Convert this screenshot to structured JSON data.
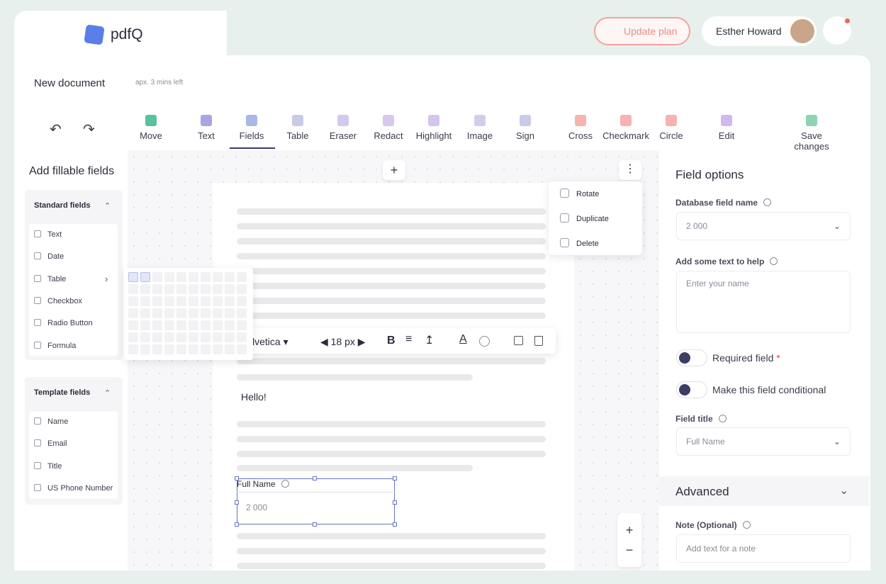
{
  "header": {
    "logo": "pdfQ",
    "update_plan": "Update plan",
    "user_name": "Esther Howard"
  },
  "document": {
    "title": "New document",
    "time_left": "apx. 3 mins left"
  },
  "toolbar": [
    "Move",
    "Text",
    "Fields",
    "Table",
    "Eraser",
    "Redact",
    "Highlight",
    "Image",
    "Sign",
    "Cross",
    "Checkmark",
    "Circle",
    "Edit",
    "Save changes"
  ],
  "left_panel": {
    "title": "Add fillable fields",
    "standard": {
      "title": "Standard fields",
      "items": [
        "Text",
        "Date",
        "Table",
        "Checkbox",
        "Radio Button",
        "Formula"
      ]
    },
    "template": {
      "title": "Template fields",
      "items": [
        "Name",
        "Email",
        "Title",
        "US Phone Number"
      ]
    }
  },
  "context_menu": [
    "Rotate",
    "Duplicate",
    "Delete"
  ],
  "format_bar": {
    "font": "lvetica",
    "size": "18 px"
  },
  "canvas": {
    "text": "Hello!",
    "field_label": "Full Name",
    "field_value": "2 000"
  },
  "right_panel": {
    "title": "Field options",
    "db_label": "Database field name",
    "db_value": "2 000",
    "help_label": "Add some text to help",
    "help_placeholder": "Enter your name",
    "required": "Required field",
    "required_mark": "*",
    "conditional": "Make this field conditional",
    "field_title_label": "Field title",
    "field_title_value": "Full Name",
    "advanced": "Advanced",
    "note_label": "Note (Optional)",
    "note_placeholder": "Add text for a note"
  }
}
